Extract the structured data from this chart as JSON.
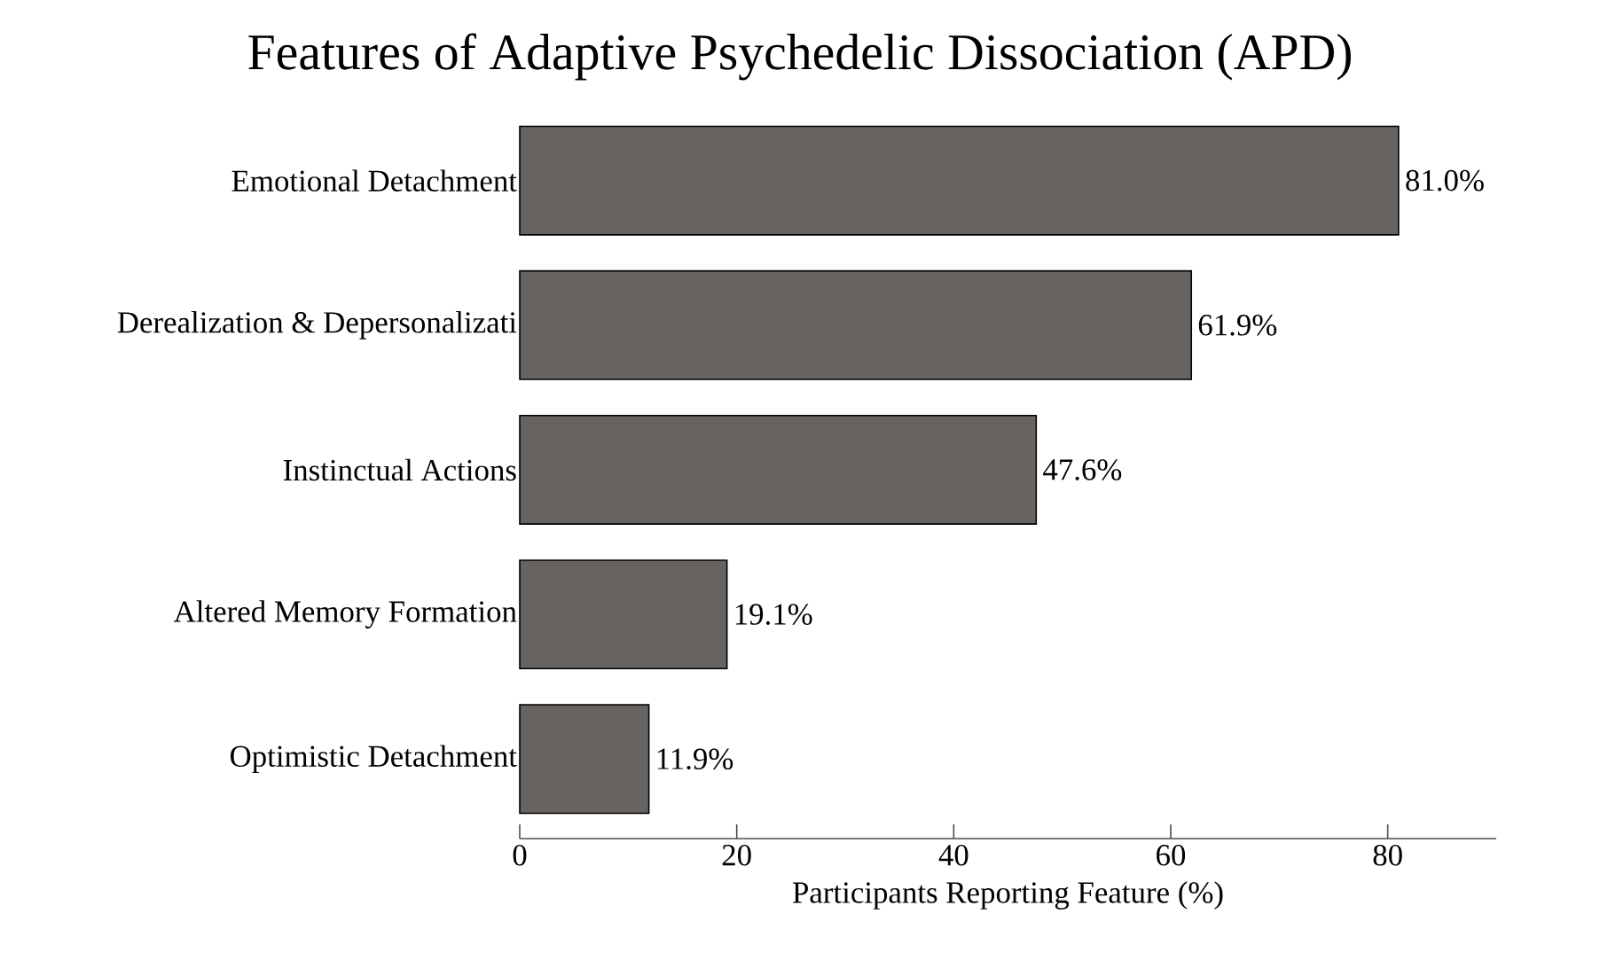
{
  "chart_data": {
    "type": "bar",
    "orientation": "horizontal",
    "title": "Features of Adaptive Psychedelic Dissociation (APD)",
    "xlabel": "Participants Reporting Feature (%)",
    "categories": [
      "Emotional Detachment",
      "Derealization & Depersonalizati",
      "Instinctual Actions",
      "Altered Memory Formation",
      "Optimistic Detachment"
    ],
    "values": [
      81.0,
      61.9,
      47.6,
      19.1,
      11.9
    ],
    "value_labels": [
      "81.0%",
      "61.9%",
      "47.6%",
      "19.1%",
      "11.9%"
    ],
    "color": "#676360",
    "xlim": [
      0,
      90
    ],
    "xticks": [
      0,
      20,
      40,
      60,
      80
    ],
    "grid": false
  }
}
